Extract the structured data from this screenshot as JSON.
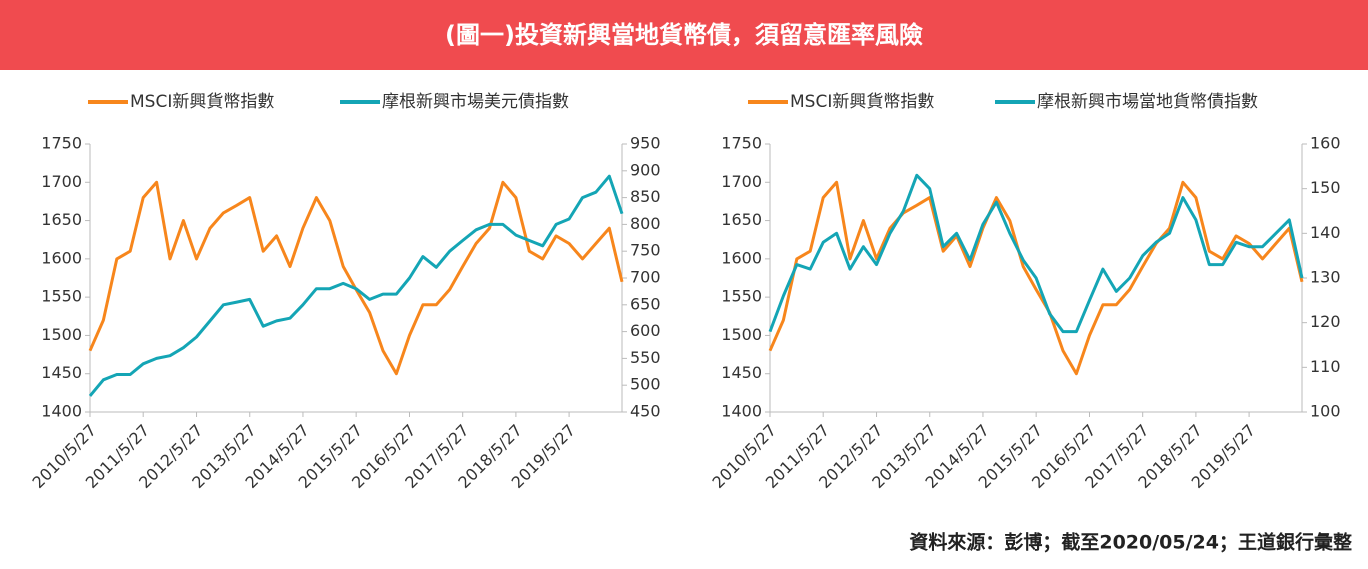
{
  "header": {
    "title": "(圖一)投資新興當地貨幣債，須留意匯率風險"
  },
  "chart_data": [
    {
      "type": "line",
      "x": [
        "2010/5/27",
        "2010/8/27",
        "2010/11/27",
        "2011/2/27",
        "2011/5/27",
        "2011/8/27",
        "2011/11/27",
        "2012/2/27",
        "2012/5/27",
        "2012/8/27",
        "2012/11/27",
        "2013/2/27",
        "2013/5/27",
        "2013/8/27",
        "2013/11/27",
        "2014/2/27",
        "2014/5/27",
        "2014/8/27",
        "2014/11/27",
        "2015/2/27",
        "2015/5/27",
        "2015/8/27",
        "2015/11/27",
        "2016/2/27",
        "2016/5/27",
        "2016/8/27",
        "2016/11/27",
        "2017/2/27",
        "2017/5/27",
        "2017/8/27",
        "2017/11/27",
        "2018/2/27",
        "2018/5/27",
        "2018/8/27",
        "2018/11/27",
        "2019/2/27",
        "2019/5/27",
        "2019/8/27",
        "2019/11/27",
        "2020/2/27",
        "2020/5/24"
      ],
      "xlim": [
        "2010/5/27",
        "2020/5/24"
      ],
      "xticks": [
        "2010/5/27",
        "2011/5/27",
        "2012/5/27",
        "2013/5/27",
        "2014/5/27",
        "2015/5/27",
        "2016/5/27",
        "2017/5/27",
        "2018/5/27",
        "2019/5/27"
      ],
      "ylim": [
        1400,
        1750
      ],
      "yticks": [
        1400,
        1450,
        1500,
        1550,
        1600,
        1650,
        1700,
        1750
      ],
      "y2lim": [
        450,
        950
      ],
      "y2ticks": [
        450,
        500,
        550,
        600,
        650,
        700,
        750,
        800,
        850,
        900,
        950
      ],
      "series": [
        {
          "name": "MSCI新興貨幣指數",
          "color": "#f7861c",
          "axis": "y",
          "values": [
            1480,
            1520,
            1600,
            1610,
            1680,
            1700,
            1600,
            1650,
            1600,
            1640,
            1660,
            1670,
            1680,
            1610,
            1630,
            1590,
            1640,
            1680,
            1650,
            1590,
            1560,
            1530,
            1480,
            1450,
            1500,
            1540,
            1540,
            1560,
            1590,
            1620,
            1640,
            1700,
            1680,
            1610,
            1600,
            1630,
            1620,
            1600,
            1620,
            1640,
            1570
          ]
        },
        {
          "name": "摩根新興市場美元債指數",
          "color": "#14a5b5",
          "axis": "y2",
          "values": [
            480,
            510,
            520,
            520,
            540,
            550,
            555,
            570,
            590,
            620,
            650,
            655,
            660,
            610,
            620,
            625,
            650,
            680,
            680,
            690,
            680,
            660,
            670,
            670,
            700,
            740,
            720,
            750,
            770,
            790,
            800,
            800,
            780,
            770,
            760,
            800,
            810,
            850,
            860,
            890,
            820
          ]
        }
      ]
    },
    {
      "type": "line",
      "x": [
        "2010/5/27",
        "2010/8/27",
        "2010/11/27",
        "2011/2/27",
        "2011/5/27",
        "2011/8/27",
        "2011/11/27",
        "2012/2/27",
        "2012/5/27",
        "2012/8/27",
        "2012/11/27",
        "2013/2/27",
        "2013/5/27",
        "2013/8/27",
        "2013/11/27",
        "2014/2/27",
        "2014/5/27",
        "2014/8/27",
        "2014/11/27",
        "2015/2/27",
        "2015/5/27",
        "2015/8/27",
        "2015/11/27",
        "2016/2/27",
        "2016/5/27",
        "2016/8/27",
        "2016/11/27",
        "2017/2/27",
        "2017/5/27",
        "2017/8/27",
        "2017/11/27",
        "2018/2/27",
        "2018/5/27",
        "2018/8/27",
        "2018/11/27",
        "2019/2/27",
        "2019/5/27",
        "2019/8/27",
        "2019/11/27",
        "2020/2/27",
        "2020/5/24"
      ],
      "xlim": [
        "2010/5/27",
        "2020/5/24"
      ],
      "xticks": [
        "2010/5/27",
        "2011/5/27",
        "2012/5/27",
        "2013/5/27",
        "2014/5/27",
        "2015/5/27",
        "2016/5/27",
        "2017/5/27",
        "2018/5/27",
        "2019/5/27"
      ],
      "ylim": [
        1400,
        1750
      ],
      "yticks": [
        1400,
        1450,
        1500,
        1550,
        1600,
        1650,
        1700,
        1750
      ],
      "y2lim": [
        100,
        160
      ],
      "y2ticks": [
        100,
        110,
        120,
        130,
        140,
        150,
        160
      ],
      "series": [
        {
          "name": "MSCI新興貨幣指數",
          "color": "#f7861c",
          "axis": "y",
          "values": [
            1480,
            1520,
            1600,
            1610,
            1680,
            1700,
            1600,
            1650,
            1600,
            1640,
            1660,
            1670,
            1680,
            1610,
            1630,
            1590,
            1640,
            1680,
            1650,
            1590,
            1560,
            1530,
            1480,
            1450,
            1500,
            1540,
            1540,
            1560,
            1590,
            1620,
            1640,
            1700,
            1680,
            1610,
            1600,
            1630,
            1620,
            1600,
            1620,
            1640,
            1570
          ]
        },
        {
          "name": "摩根新興市場當地貨幣債指數",
          "color": "#14a5b5",
          "axis": "y2",
          "values": [
            118,
            126,
            133,
            132,
            138,
            140,
            132,
            137,
            133,
            140,
            145,
            153,
            150,
            137,
            140,
            134,
            142,
            147,
            140,
            134,
            130,
            122,
            118,
            118,
            125,
            132,
            127,
            130,
            135,
            138,
            140,
            148,
            143,
            133,
            133,
            138,
            137,
            137,
            140,
            143,
            130
          ]
        }
      ]
    }
  ],
  "footer": {
    "source": "資料來源：彭博；截至2020/05/24；王道銀行彙整"
  }
}
